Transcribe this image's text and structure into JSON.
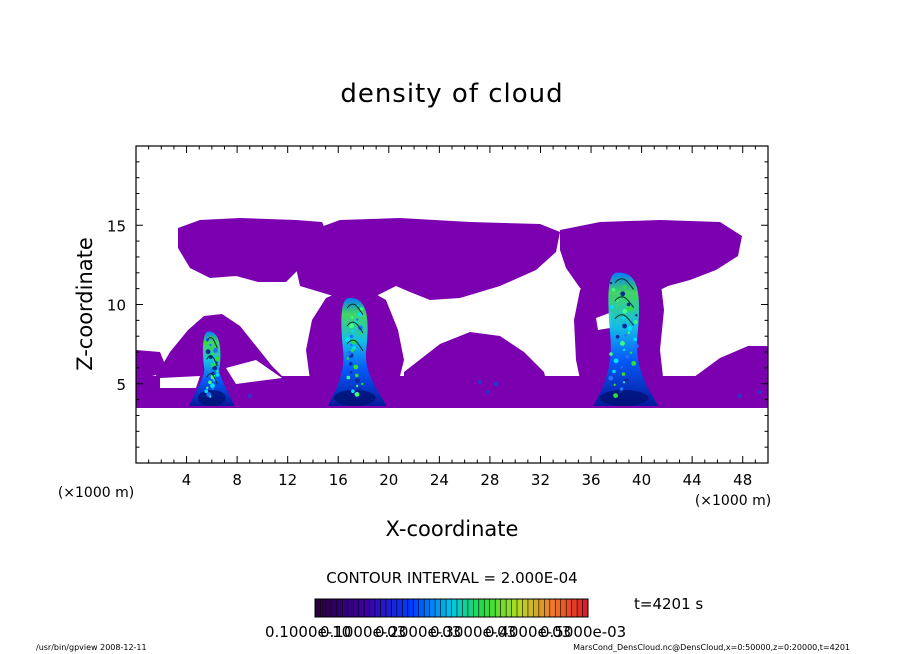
{
  "chart_data": {
    "type": "heatmap",
    "title": "density of cloud",
    "xlabel": "X-coordinate",
    "ylabel": "Z-coordinate",
    "x_unit": "(×1000 m)",
    "y_unit": "(×1000 m)",
    "xlim": [
      0,
      50
    ],
    "ylim": [
      0,
      20
    ],
    "x_ticks": [
      4,
      8,
      12,
      16,
      20,
      24,
      28,
      32,
      36,
      40,
      44,
      48
    ],
    "y_ticks": [
      5,
      10,
      15
    ],
    "contour_interval": "CONTOUR INTERVAL = 2.000E-04",
    "time_label": "t=4201 s",
    "colorbar_labels": [
      "0.1000e-10",
      "0.1000e-03",
      "0.2000e-03",
      "0.3000e-03",
      "0.4000e-03",
      "0.5000e-03"
    ],
    "colors": {
      "low": "#7a00b0",
      "mid": "#0050ff",
      "high_cyan": "#00d8e0",
      "high_green": "#30e030",
      "peak_dark": "#001070"
    },
    "regions": [
      {
        "name": "anvil-left",
        "level": "low",
        "x": [
          2.5,
          13.5
        ],
        "z": [
          10.8,
          15.4
        ]
      },
      {
        "name": "anvil-center",
        "level": "low",
        "x": [
          13.5,
          34.5
        ],
        "z": [
          10.5,
          15.3
        ]
      },
      {
        "name": "anvil-right",
        "level": "low",
        "x": [
          33.5,
          47
        ],
        "z": [
          10.5,
          15.0
        ]
      },
      {
        "name": "base-layer",
        "level": "low",
        "x": [
          0,
          50
        ],
        "z": [
          3.5,
          5.3
        ]
      },
      {
        "name": "cell-1",
        "level": "peak",
        "x": [
          5,
          7
        ],
        "z": [
          3.6,
          8.3
        ],
        "peak_x": 6
      },
      {
        "name": "cell-2",
        "level": "peak",
        "x": [
          16,
          19
        ],
        "z": [
          3.6,
          10.4
        ],
        "peak_x": 17.3
      },
      {
        "name": "cell-3",
        "level": "peak",
        "x": [
          37,
          40.5
        ],
        "z": [
          3.6,
          12.0
        ],
        "peak_x": 38.6
      }
    ]
  },
  "footer": {
    "left": "/usr/bin/gpview   2008-12-11",
    "right": "MarsCond_DensCloud.nc@DensCloud,x=0:50000,z=0:20000,t=4201"
  }
}
